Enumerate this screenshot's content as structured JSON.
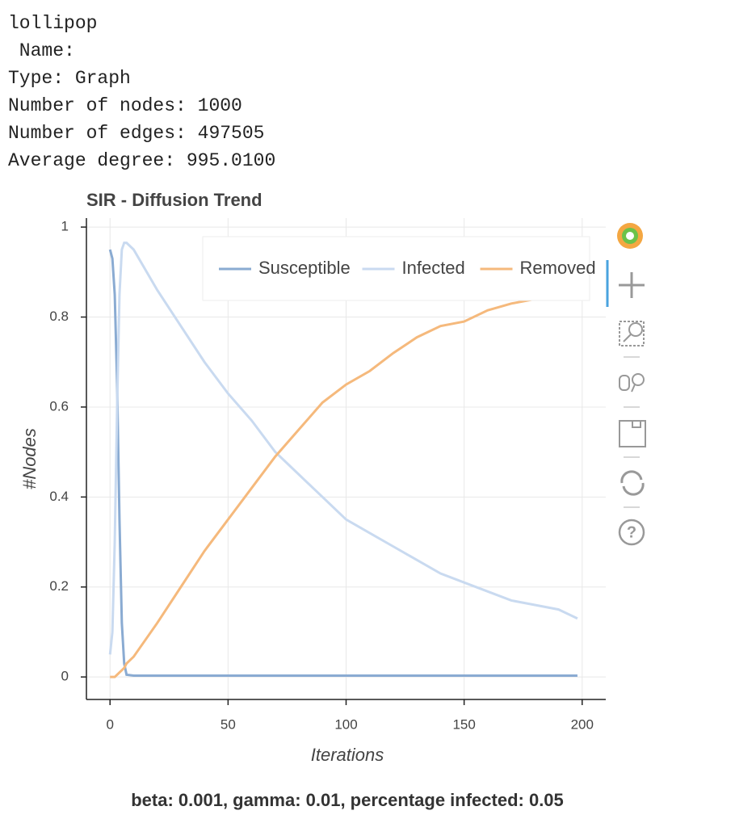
{
  "info_lines": [
    "lollipop",
    " Name:",
    "Type: Graph",
    "Number of nodes: 1000",
    "Number of edges: 497505",
    "Average degree: 995.0100"
  ],
  "chart_data": {
    "type": "line",
    "title": "SIR - Diffusion Trend",
    "subtitle": "beta: 0.001, gamma: 0.01, percentage infected: 0.05",
    "x_label": "Iterations",
    "y_label": "#Nodes",
    "x": [
      0,
      1,
      2,
      3,
      4,
      5,
      6,
      7,
      10,
      20,
      30,
      40,
      50,
      60,
      70,
      80,
      90,
      100,
      110,
      120,
      130,
      140,
      150,
      160,
      170,
      180,
      190,
      198
    ],
    "series": [
      {
        "name": "Susceptible",
        "color": "#8aabd2",
        "values": [
          0.95,
          0.93,
          0.85,
          0.65,
          0.35,
          0.12,
          0.03,
          0.005,
          0.003,
          0.003,
          0.003,
          0.003,
          0.003,
          0.003,
          0.003,
          0.003,
          0.003,
          0.003,
          0.003,
          0.003,
          0.003,
          0.003,
          0.003,
          0.003,
          0.003,
          0.003,
          0.003,
          0.003
        ]
      },
      {
        "name": "Infected",
        "color": "#c9daf0",
        "values": [
          0.05,
          0.1,
          0.3,
          0.6,
          0.85,
          0.95,
          0.965,
          0.965,
          0.95,
          0.86,
          0.78,
          0.7,
          0.63,
          0.57,
          0.5,
          0.45,
          0.4,
          0.35,
          0.32,
          0.29,
          0.26,
          0.23,
          0.21,
          0.19,
          0.17,
          0.16,
          0.15,
          0.13
        ]
      },
      {
        "name": "Removed",
        "color": "#f5b97c",
        "values": [
          0,
          0,
          0,
          0.005,
          0.01,
          0.015,
          0.02,
          0.03,
          0.045,
          0.12,
          0.2,
          0.28,
          0.35,
          0.42,
          0.49,
          0.55,
          0.61,
          0.65,
          0.68,
          0.72,
          0.755,
          0.78,
          0.79,
          0.815,
          0.83,
          0.84,
          0.85,
          0.87
        ]
      }
    ],
    "xlim": [
      -10,
      210
    ],
    "ylim": [
      -0.05,
      1.02
    ],
    "xticks": [
      0,
      50,
      100,
      150,
      200
    ],
    "yticks": [
      0,
      0.2,
      0.4,
      0.6,
      0.8,
      1
    ],
    "grid": true,
    "legend": "top_right"
  }
}
